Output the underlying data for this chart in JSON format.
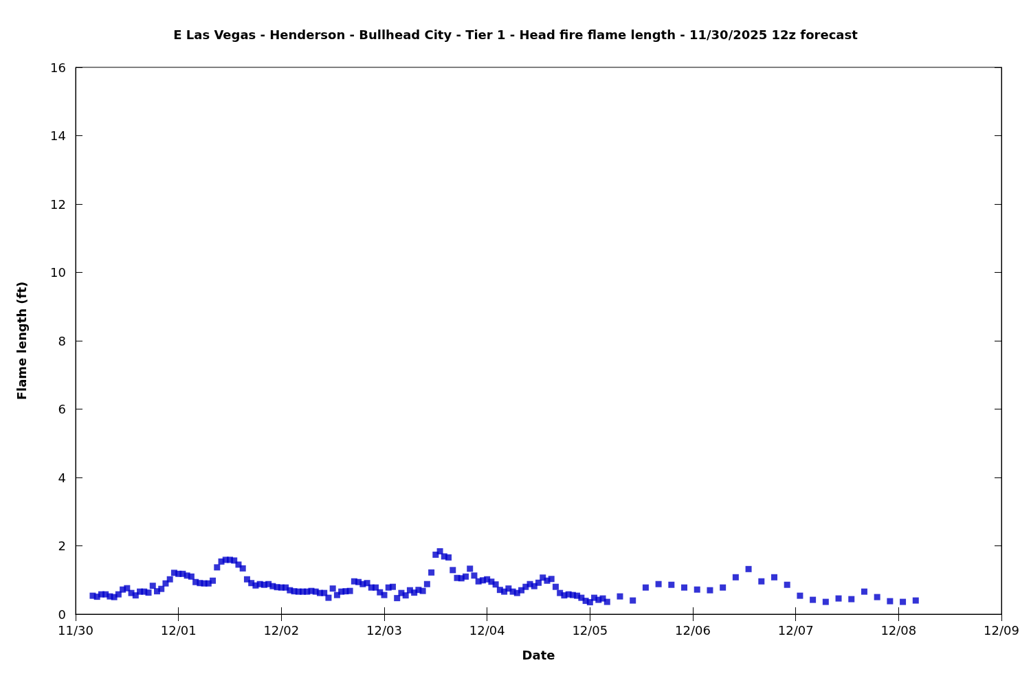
{
  "chart_data": {
    "type": "scatter",
    "title": "E Las Vegas - Henderson - Bullhead City - Tier 1 - Head fire flame length - 11/30/2025 12z forecast",
    "xlabel": "Date",
    "ylabel": "Flame length (ft)",
    "x": [
      "2025-11-30T04:00",
      "2025-11-30T05:00",
      "2025-11-30T06:00",
      "2025-11-30T07:00",
      "2025-11-30T08:00",
      "2025-11-30T09:00",
      "2025-11-30T10:00",
      "2025-11-30T11:00",
      "2025-11-30T12:00",
      "2025-11-30T13:00",
      "2025-11-30T14:00",
      "2025-11-30T15:00",
      "2025-11-30T16:00",
      "2025-11-30T17:00",
      "2025-11-30T18:00",
      "2025-11-30T19:00",
      "2025-11-30T20:00",
      "2025-11-30T21:00",
      "2025-11-30T22:00",
      "2025-11-30T23:00",
      "2025-12-01T00:00",
      "2025-12-01T01:00",
      "2025-12-01T02:00",
      "2025-12-01T03:00",
      "2025-12-01T04:00",
      "2025-12-01T05:00",
      "2025-12-01T06:00",
      "2025-12-01T07:00",
      "2025-12-01T08:00",
      "2025-12-01T09:00",
      "2025-12-01T10:00",
      "2025-12-01T11:00",
      "2025-12-01T12:00",
      "2025-12-01T13:00",
      "2025-12-01T14:00",
      "2025-12-01T15:00",
      "2025-12-01T16:00",
      "2025-12-01T17:00",
      "2025-12-01T18:00",
      "2025-12-01T19:00",
      "2025-12-01T20:00",
      "2025-12-01T21:00",
      "2025-12-01T22:00",
      "2025-12-01T23:00",
      "2025-12-02T00:00",
      "2025-12-02T01:00",
      "2025-12-02T02:00",
      "2025-12-02T03:00",
      "2025-12-02T04:00",
      "2025-12-02T05:00",
      "2025-12-02T06:00",
      "2025-12-02T07:00",
      "2025-12-02T08:00",
      "2025-12-02T09:00",
      "2025-12-02T10:00",
      "2025-12-02T11:00",
      "2025-12-02T12:00",
      "2025-12-02T13:00",
      "2025-12-02T14:00",
      "2025-12-02T15:00",
      "2025-12-02T16:00",
      "2025-12-02T17:00",
      "2025-12-02T18:00",
      "2025-12-02T19:00",
      "2025-12-02T20:00",
      "2025-12-02T21:00",
      "2025-12-02T22:00",
      "2025-12-02T23:00",
      "2025-12-03T00:00",
      "2025-12-03T01:00",
      "2025-12-03T02:00",
      "2025-12-03T03:00",
      "2025-12-03T04:00",
      "2025-12-03T05:00",
      "2025-12-03T06:00",
      "2025-12-03T07:00",
      "2025-12-03T08:00",
      "2025-12-03T09:00",
      "2025-12-03T10:00",
      "2025-12-03T11:00",
      "2025-12-03T12:00",
      "2025-12-03T13:00",
      "2025-12-03T14:00",
      "2025-12-03T15:00",
      "2025-12-03T16:00",
      "2025-12-03T17:00",
      "2025-12-03T18:00",
      "2025-12-03T19:00",
      "2025-12-03T20:00",
      "2025-12-03T21:00",
      "2025-12-03T22:00",
      "2025-12-03T23:00",
      "2025-12-04T00:00",
      "2025-12-04T01:00",
      "2025-12-04T02:00",
      "2025-12-04T03:00",
      "2025-12-04T04:00",
      "2025-12-04T05:00",
      "2025-12-04T06:00",
      "2025-12-04T07:00",
      "2025-12-04T08:00",
      "2025-12-04T09:00",
      "2025-12-04T10:00",
      "2025-12-04T11:00",
      "2025-12-04T12:00",
      "2025-12-04T13:00",
      "2025-12-04T14:00",
      "2025-12-04T15:00",
      "2025-12-04T16:00",
      "2025-12-04T17:00",
      "2025-12-04T18:00",
      "2025-12-04T19:00",
      "2025-12-04T20:00",
      "2025-12-04T21:00",
      "2025-12-04T22:00",
      "2025-12-04T23:00",
      "2025-12-05T00:00",
      "2025-12-05T01:00",
      "2025-12-05T02:00",
      "2025-12-05T03:00",
      "2025-12-05T04:00",
      "2025-12-05T07:00",
      "2025-12-05T10:00",
      "2025-12-05T13:00",
      "2025-12-05T16:00",
      "2025-12-05T19:00",
      "2025-12-05T22:00",
      "2025-12-06T01:00",
      "2025-12-06T04:00",
      "2025-12-06T07:00",
      "2025-12-06T10:00",
      "2025-12-06T13:00",
      "2025-12-06T16:00",
      "2025-12-06T19:00",
      "2025-12-06T22:00",
      "2025-12-07T01:00",
      "2025-12-07T04:00",
      "2025-12-07T07:00",
      "2025-12-07T10:00",
      "2025-12-07T13:00",
      "2025-12-07T16:00",
      "2025-12-07T19:00",
      "2025-12-07T22:00",
      "2025-12-08T01:00",
      "2025-12-08T04:00"
    ],
    "values": [
      0.54,
      0.51,
      0.58,
      0.58,
      0.52,
      0.5,
      0.58,
      0.72,
      0.76,
      0.62,
      0.55,
      0.66,
      0.66,
      0.63,
      0.83,
      0.67,
      0.74,
      0.9,
      1.02,
      1.21,
      1.18,
      1.18,
      1.13,
      1.1,
      0.94,
      0.91,
      0.9,
      0.9,
      0.98,
      1.37,
      1.54,
      1.59,
      1.59,
      1.57,
      1.45,
      1.34,
      1.02,
      0.91,
      0.84,
      0.88,
      0.86,
      0.88,
      0.82,
      0.79,
      0.78,
      0.78,
      0.7,
      0.67,
      0.66,
      0.66,
      0.66,
      0.68,
      0.66,
      0.62,
      0.62,
      0.48,
      0.75,
      0.56,
      0.66,
      0.67,
      0.68,
      0.96,
      0.94,
      0.88,
      0.91,
      0.78,
      0.78,
      0.64,
      0.56,
      0.78,
      0.8,
      0.47,
      0.62,
      0.55,
      0.7,
      0.63,
      0.71,
      0.68,
      0.88,
      1.22,
      1.74,
      1.84,
      1.69,
      1.66,
      1.29,
      1.06,
      1.05,
      1.1,
      1.33,
      1.13,
      0.96,
      0.99,
      1.02,
      0.95,
      0.87,
      0.71,
      0.66,
      0.75,
      0.66,
      0.62,
      0.7,
      0.8,
      0.88,
      0.82,
      0.92,
      1.07,
      0.98,
      1.03,
      0.8,
      0.62,
      0.55,
      0.58,
      0.56,
      0.54,
      0.48,
      0.39,
      0.35,
      0.48,
      0.42,
      0.46,
      0.36,
      0.52,
      0.4,
      0.78,
      0.88,
      0.86,
      0.78,
      0.72,
      0.7,
      0.78,
      1.08,
      1.32,
      0.96,
      1.08,
      0.86,
      0.54,
      0.42,
      0.36,
      0.46,
      0.44,
      0.66,
      0.5,
      0.38,
      0.36,
      0.4
    ],
    "color": "#0000cc",
    "marker": "square",
    "xlim": [
      "2025-11-30",
      "2025-12-09"
    ],
    "xticks": [
      {
        "value": "2025-11-30",
        "label": "11/30"
      },
      {
        "value": "2025-12-01",
        "label": "12/01"
      },
      {
        "value": "2025-12-02",
        "label": "12/02"
      },
      {
        "value": "2025-12-03",
        "label": "12/03"
      },
      {
        "value": "2025-12-04",
        "label": "12/04"
      },
      {
        "value": "2025-12-05",
        "label": "12/05"
      },
      {
        "value": "2025-12-06",
        "label": "12/06"
      },
      {
        "value": "2025-12-07",
        "label": "12/07"
      },
      {
        "value": "2025-12-08",
        "label": "12/08"
      },
      {
        "value": "2025-12-09",
        "label": "12/09"
      }
    ],
    "ylim": [
      0,
      16
    ],
    "yticks": [
      0,
      2,
      4,
      6,
      8,
      10,
      12,
      14,
      16
    ],
    "grid": false
  }
}
